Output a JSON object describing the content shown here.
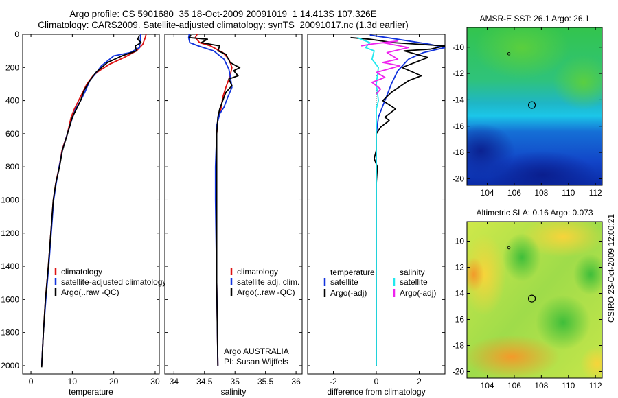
{
  "header": {
    "line1": "Argo profile: CS 5901680_35 18-Oct-2009 20091019_1 14.413S 107.326E",
    "line2": "Climatology: CARS2009. Satellite-adjusted climatology: synTS_20091017.nc (1.3d earlier)"
  },
  "side_label": "CSIRO 23-Oct-2009 12:00:21",
  "colors": {
    "red": "#dd1111",
    "blue": "#1133dd",
    "black": "#000000",
    "cyan": "#22e8ee",
    "magenta": "#ee22ee"
  },
  "chart_data": [
    {
      "type": "line",
      "xlabel": "temperature",
      "xlim": [
        -2,
        31
      ],
      "ylim": [
        0,
        2050
      ],
      "yticks": [
        0,
        200,
        400,
        600,
        800,
        1000,
        1200,
        1400,
        1600,
        1800,
        2000
      ],
      "xticks": [
        0,
        10,
        20,
        30
      ],
      "legend": [
        "climatology",
        "satellite-adjusted climatology",
        "Argo(..raw -QC)"
      ],
      "series": [
        {
          "name": "climatology",
          "color": "red",
          "points": [
            [
              27.8,
              0
            ],
            [
              27.6,
              20
            ],
            [
              27,
              60
            ],
            [
              25.5,
              100
            ],
            [
              22.5,
              140
            ],
            [
              19,
              180
            ],
            [
              16.5,
              220
            ],
            [
              15,
              250
            ],
            [
              13.5,
              300
            ],
            [
              12.5,
              350
            ],
            [
              11.5,
              400
            ],
            [
              10.5,
              450
            ],
            [
              9.7,
              500
            ],
            [
              8.8,
              600
            ],
            [
              7.5,
              700
            ],
            [
              6.8,
              800
            ],
            [
              6,
              900
            ],
            [
              5.4,
              1000
            ],
            [
              4.8,
              1200
            ],
            [
              4.2,
              1400
            ],
            [
              3.5,
              1600
            ],
            [
              3,
              1800
            ],
            [
              2.6,
              2000
            ]
          ]
        },
        {
          "name": "satellite-adjusted climatology",
          "color": "blue",
          "points": [
            [
              26.5,
              0
            ],
            [
              26.4,
              40
            ],
            [
              26.2,
              80
            ],
            [
              24,
              110
            ],
            [
              20,
              130
            ],
            [
              17,
              190
            ],
            [
              15.5,
              240
            ],
            [
              14.2,
              280
            ],
            [
              13,
              350
            ],
            [
              12,
              400
            ],
            [
              10.8,
              450
            ],
            [
              9.8,
              520
            ],
            [
              8.8,
              600
            ],
            [
              7.6,
              700
            ],
            [
              6.8,
              800
            ],
            [
              6.1,
              900
            ],
            [
              5.5,
              1000
            ],
            [
              4.9,
              1200
            ],
            [
              4.3,
              1400
            ],
            [
              3.6,
              1600
            ],
            [
              3,
              1800
            ],
            [
              2.6,
              2000
            ]
          ]
        },
        {
          "name": "Argo(..raw -QC)",
          "color": "black",
          "points": [
            [
              26.2,
              5
            ],
            [
              25.8,
              30
            ],
            [
              26.6,
              50
            ],
            [
              25.2,
              70
            ],
            [
              25.5,
              100
            ],
            [
              22,
              130
            ],
            [
              18.5,
              170
            ],
            [
              15.7,
              230
            ],
            [
              14.2,
              280
            ],
            [
              12.8,
              340
            ],
            [
              12,
              400
            ],
            [
              11,
              450
            ],
            [
              10,
              500
            ],
            [
              9.3,
              560
            ],
            [
              8.6,
              620
            ],
            [
              7.6,
              700
            ],
            [
              6.9,
              800
            ],
            [
              6,
              900
            ],
            [
              5.4,
              1000
            ],
            [
              4.8,
              1200
            ],
            [
              4.2,
              1400
            ],
            [
              3.5,
              1600
            ],
            [
              3,
              1800
            ],
            [
              2.6,
              2010
            ]
          ]
        }
      ]
    },
    {
      "type": "line",
      "xlabel": "salinity",
      "xlim": [
        33.85,
        36.1
      ],
      "ylim": [
        0,
        2050
      ],
      "xticks": [
        34,
        34.5,
        35,
        35.5,
        36
      ],
      "legend": [
        "climatology",
        "satellite adj. clim.",
        "Argo(..raw -QC)"
      ],
      "annotations": [
        "Argo AUSTRALIA",
        "PI: Susan Wijffels"
      ],
      "series": [
        {
          "name": "climatology",
          "color": "red",
          "points": [
            [
              34.38,
              0
            ],
            [
              34.35,
              20
            ],
            [
              34.42,
              50
            ],
            [
              34.6,
              70
            ],
            [
              34.8,
              110
            ],
            [
              34.9,
              150
            ],
            [
              34.95,
              200
            ],
            [
              34.92,
              250
            ],
            [
              34.85,
              320
            ],
            [
              34.8,
              380
            ],
            [
              34.77,
              450
            ],
            [
              34.72,
              520
            ],
            [
              34.7,
              600
            ],
            [
              34.7,
              800
            ],
            [
              34.7,
              1000
            ],
            [
              34.7,
              1500
            ],
            [
              34.72,
              2000
            ]
          ]
        },
        {
          "name": "satellite adj. clim.",
          "color": "blue",
          "points": [
            [
              34.25,
              0
            ],
            [
              34.24,
              20
            ],
            [
              34.26,
              50
            ],
            [
              34.4,
              70
            ],
            [
              34.65,
              100
            ],
            [
              34.82,
              150
            ],
            [
              34.9,
              210
            ],
            [
              34.92,
              250
            ],
            [
              34.95,
              320
            ],
            [
              34.88,
              380
            ],
            [
              34.82,
              440
            ],
            [
              34.75,
              480
            ],
            [
              34.7,
              550
            ],
            [
              34.7,
              600
            ],
            [
              34.68,
              800
            ],
            [
              34.68,
              1000
            ],
            [
              34.7,
              1500
            ],
            [
              34.72,
              2000
            ]
          ]
        },
        {
          "name": "Argo(..raw -QC)",
          "color": "black",
          "points": [
            [
              34.28,
              5
            ],
            [
              34.25,
              20
            ],
            [
              34.55,
              30
            ],
            [
              34.45,
              50
            ],
            [
              34.75,
              70
            ],
            [
              34.72,
              100
            ],
            [
              34.85,
              120
            ],
            [
              34.92,
              170
            ],
            [
              35.02,
              190
            ],
            [
              35.08,
              200
            ],
            [
              34.98,
              220
            ],
            [
              35.05,
              250
            ],
            [
              34.9,
              270
            ],
            [
              34.95,
              310
            ],
            [
              34.85,
              350
            ],
            [
              34.8,
              400
            ],
            [
              34.75,
              450
            ],
            [
              34.72,
              500
            ],
            [
              34.7,
              600
            ],
            [
              34.7,
              1000
            ],
            [
              34.7,
              1500
            ],
            [
              34.72,
              2000
            ]
          ]
        }
      ]
    },
    {
      "type": "line",
      "xlabel": "difference from climatology",
      "xlim": [
        -3.2,
        3.2
      ],
      "ylim": [
        0,
        2050
      ],
      "xticks": [
        -2,
        0,
        2
      ],
      "legend_headers": [
        "temperature",
        "salinity"
      ],
      "legend": [
        "satellite",
        "Argo(-adj)",
        "satellite",
        "Argo(-adj)"
      ],
      "series": [
        {
          "name": "satellite",
          "quantity": "temperature",
          "color": "blue",
          "points": [
            [
              -0.3,
              5
            ],
            [
              0.5,
              20
            ],
            [
              1.5,
              40
            ],
            [
              2.5,
              60
            ],
            [
              3.2,
              80
            ],
            [
              2.2,
              110
            ],
            [
              1.5,
              150
            ],
            [
              1,
              220
            ],
            [
              0.7,
              300
            ],
            [
              0.4,
              400
            ],
            [
              0.1,
              500
            ],
            [
              0,
              600
            ],
            [
              0,
              800
            ],
            [
              0,
              1000
            ],
            [
              0,
              1500
            ],
            [
              0,
              2000
            ]
          ]
        },
        {
          "name": "Argo(-adj)",
          "quantity": "temperature",
          "color": "black",
          "points": [
            [
              -1.2,
              20
            ],
            [
              -0.3,
              30
            ],
            [
              0.8,
              50
            ],
            [
              2,
              60
            ],
            [
              3.2,
              70
            ],
            [
              2.5,
              90
            ],
            [
              1.3,
              100
            ],
            [
              2.4,
              140
            ],
            [
              1.2,
              200
            ],
            [
              2.1,
              250
            ],
            [
              1.5,
              280
            ],
            [
              0.7,
              350
            ],
            [
              0.3,
              400
            ],
            [
              0.9,
              450
            ],
            [
              0.4,
              500
            ],
            [
              0.6,
              520
            ],
            [
              0.2,
              560
            ],
            [
              0,
              600
            ],
            [
              0,
              700
            ],
            [
              -0.1,
              750
            ],
            [
              0.05,
              800
            ],
            [
              0,
              900
            ],
            [
              0,
              1000
            ],
            [
              0,
              1500
            ],
            [
              0,
              2000
            ]
          ]
        },
        {
          "name": "satellite",
          "quantity": "salinity",
          "color": "cyan",
          "points": [
            [
              -0.9,
              20
            ],
            [
              -0.3,
              50
            ],
            [
              -0.5,
              80
            ],
            [
              -0.1,
              100
            ],
            [
              -0.2,
              150
            ],
            [
              0.1,
              200
            ],
            [
              0,
              300
            ],
            [
              0.1,
              400
            ],
            [
              0,
              450
            ],
            [
              0,
              500
            ],
            [
              0,
              800
            ],
            [
              0,
              1200
            ],
            [
              0,
              1600
            ],
            [
              0,
              2000
            ]
          ]
        },
        {
          "name": "Argo(-adj)",
          "quantity": "salinity",
          "color": "magenta",
          "points": [
            [
              -0.7,
              70
            ],
            [
              -0.3,
              60
            ],
            [
              1,
              40
            ],
            [
              0.3,
              50
            ],
            [
              1.5,
              80
            ],
            [
              0.5,
              110
            ],
            [
              1,
              150
            ],
            [
              0.3,
              170
            ],
            [
              1.1,
              190
            ],
            [
              0,
              230
            ],
            [
              0.4,
              260
            ],
            [
              -0.2,
              290
            ],
            [
              0.2,
              330
            ],
            [
              0,
              360
            ]
          ]
        }
      ]
    },
    {
      "type": "heatmap",
      "title": "AMSR-E SST: 26.1  Argo: 26.1",
      "xlim": [
        102.5,
        112.5
      ],
      "ylim": [
        -20.5,
        -8.5
      ],
      "xticks": [
        104,
        106,
        108,
        110,
        112
      ],
      "yticks": [
        -10,
        -12,
        -14,
        -16,
        -18,
        -20
      ],
      "markers": [
        {
          "lon": 107.3,
          "lat": -14.4,
          "type": "circle"
        },
        {
          "lon": 105.6,
          "lat": -10.5,
          "type": "dot"
        }
      ]
    },
    {
      "type": "heatmap",
      "title": "Altimetric SLA: 0.16  Argo: 0.073",
      "xlim": [
        102.5,
        112.5
      ],
      "ylim": [
        -20.5,
        -8.5
      ],
      "xticks": [
        104,
        106,
        108,
        110,
        112
      ],
      "yticks": [
        -10,
        -12,
        -14,
        -16,
        -18,
        -20
      ],
      "markers": [
        {
          "lon": 107.3,
          "lat": -14.4,
          "type": "circle"
        },
        {
          "lon": 105.6,
          "lat": -10.5,
          "type": "dot"
        }
      ]
    }
  ]
}
